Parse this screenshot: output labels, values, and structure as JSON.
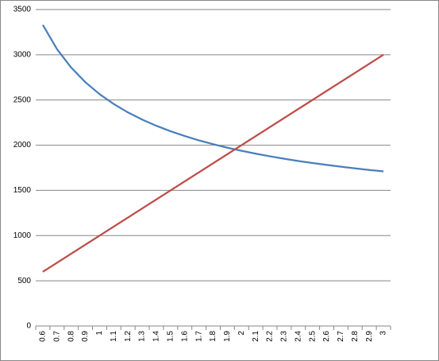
{
  "chart_data": {
    "type": "line",
    "categories": [
      "0.6",
      "0.7",
      "0.8",
      "0.9",
      "1",
      "1.1",
      "1.2",
      "1.3",
      "1.4",
      "1.5",
      "1.6",
      "1.7",
      "1.8",
      "1.9",
      "2",
      "2.1",
      "2.2",
      "2.3",
      "2.4",
      "2.5",
      "2.6",
      "2.7",
      "2.8",
      "2.9",
      "3"
    ],
    "series": [
      {
        "color": "#4a7ebb",
        "values": [
          3330,
          3062,
          2858,
          2696,
          2564,
          2455,
          2362,
          2283,
          2214,
          2154,
          2101,
          2053,
          2011,
          1972,
          1938,
          1906,
          1877,
          1850,
          1825,
          1803,
          1782,
          1762,
          1743,
          1726,
          1710
        ]
      },
      {
        "color": "#be4b48",
        "values": [
          600,
          700,
          800,
          900,
          1000,
          1100,
          1200,
          1300,
          1400,
          1500,
          1600,
          1700,
          1800,
          1900,
          2000,
          2100,
          2200,
          2300,
          2400,
          2500,
          2600,
          2700,
          2800,
          2900,
          3000
        ]
      }
    ],
    "ylim": [
      0,
      3500
    ],
    "yticks": [
      0,
      500,
      1000,
      1500,
      2000,
      2500,
      3000,
      3500
    ],
    "grid": true
  }
}
